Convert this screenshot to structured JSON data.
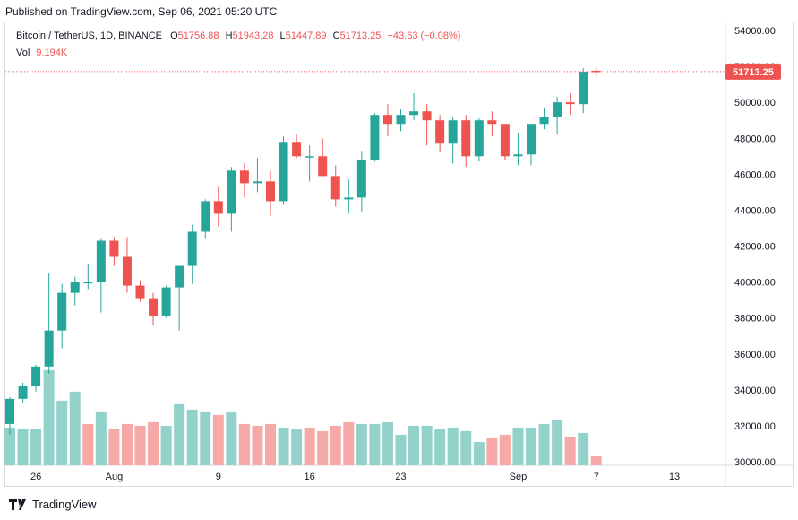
{
  "header": {
    "published": "Published on TradingView.com, Sep 06, 2021 05:20 UTC"
  },
  "legend": {
    "symbol": "Bitcoin / TetherUS, 1D, BINANCE",
    "o_label": "O",
    "o_value": "51756.88",
    "h_label": "H",
    "h_value": "51943.28",
    "l_label": "L",
    "l_value": "51447.89",
    "c_label": "C",
    "c_value": "51713.25",
    "change": "−43.63 (−0.08%)",
    "vol_label": "Vol",
    "vol_value": "9.194K"
  },
  "footer": {
    "brand": "TradingView"
  },
  "colors": {
    "up": "#26a69a",
    "down": "#ef5350",
    "up_vol": "#93d2cb",
    "down_vol": "#f7a9a7",
    "grid": "#e0e3eb"
  },
  "chart_data": {
    "type": "candlestick",
    "price_axis": {
      "min": 30000,
      "max": 54000,
      "step": 2000,
      "labels": [
        "54000.00",
        "52000.00",
        "50000.00",
        "48000.00",
        "46000.00",
        "44000.00",
        "42000.00",
        "40000.00",
        "38000.00",
        "36000.00",
        "34000.00",
        "32000.00",
        "30000.00"
      ]
    },
    "last_price_label": "51713.25",
    "last_price": 51713.25,
    "x_ticks": [
      {
        "label": "26",
        "index": 2
      },
      {
        "label": "Aug",
        "index": 8
      },
      {
        "label": "9",
        "index": 16
      },
      {
        "label": "16",
        "index": 23
      },
      {
        "label": "23",
        "index": 30
      },
      {
        "label": "Sep",
        "index": 39
      },
      {
        "label": "7",
        "index": 45
      },
      {
        "label": "13",
        "index": 51
      }
    ],
    "candles": [
      {
        "o": 32100,
        "h": 33600,
        "l": 31500,
        "c": 33500
      },
      {
        "o": 33500,
        "h": 34400,
        "l": 33300,
        "c": 34200
      },
      {
        "o": 34200,
        "h": 35400,
        "l": 33900,
        "c": 35300
      },
      {
        "o": 35300,
        "h": 40500,
        "l": 34900,
        "c": 37300
      },
      {
        "o": 37300,
        "h": 39900,
        "l": 36300,
        "c": 39400
      },
      {
        "o": 39400,
        "h": 40300,
        "l": 38700,
        "c": 40000
      },
      {
        "o": 40000,
        "h": 41000,
        "l": 39600,
        "c": 40000
      },
      {
        "o": 40000,
        "h": 42400,
        "l": 38300,
        "c": 42300
      },
      {
        "o": 42300,
        "h": 42500,
        "l": 40900,
        "c": 41400
      },
      {
        "o": 41400,
        "h": 42500,
        "l": 39400,
        "c": 39800
      },
      {
        "o": 39800,
        "h": 40100,
        "l": 38900,
        "c": 39100
      },
      {
        "o": 39100,
        "h": 39400,
        "l": 37600,
        "c": 38100
      },
      {
        "o": 38100,
        "h": 39800,
        "l": 38000,
        "c": 39700
      },
      {
        "o": 39700,
        "h": 40700,
        "l": 37300,
        "c": 40900
      },
      {
        "o": 40900,
        "h": 43200,
        "l": 39900,
        "c": 42800
      },
      {
        "o": 42800,
        "h": 44600,
        "l": 42400,
        "c": 44500
      },
      {
        "o": 44500,
        "h": 45300,
        "l": 43100,
        "c": 43800
      },
      {
        "o": 43800,
        "h": 46400,
        "l": 42800,
        "c": 46200
      },
      {
        "o": 46200,
        "h": 46600,
        "l": 44700,
        "c": 45500
      },
      {
        "o": 45500,
        "h": 46900,
        "l": 45000,
        "c": 45600
      },
      {
        "o": 45600,
        "h": 46200,
        "l": 43700,
        "c": 44500
      },
      {
        "o": 44500,
        "h": 48100,
        "l": 44300,
        "c": 47800
      },
      {
        "o": 47800,
        "h": 48200,
        "l": 46900,
        "c": 47000
      },
      {
        "o": 47000,
        "h": 47600,
        "l": 45600,
        "c": 47000
      },
      {
        "o": 47000,
        "h": 48000,
        "l": 45900,
        "c": 45900
      },
      {
        "o": 45900,
        "h": 46500,
        "l": 44200,
        "c": 44600
      },
      {
        "o": 44600,
        "h": 45700,
        "l": 43800,
        "c": 44700
      },
      {
        "o": 44700,
        "h": 47300,
        "l": 43900,
        "c": 46800
      },
      {
        "o": 46800,
        "h": 49400,
        "l": 46700,
        "c": 49300
      },
      {
        "o": 49300,
        "h": 49900,
        "l": 48100,
        "c": 48800
      },
      {
        "o": 48800,
        "h": 49600,
        "l": 48400,
        "c": 49300
      },
      {
        "o": 49300,
        "h": 50500,
        "l": 49000,
        "c": 49500
      },
      {
        "o": 49500,
        "h": 49900,
        "l": 47600,
        "c": 49000
      },
      {
        "o": 49000,
        "h": 49300,
        "l": 47200,
        "c": 47700
      },
      {
        "o": 47700,
        "h": 49200,
        "l": 46600,
        "c": 49000
      },
      {
        "o": 49000,
        "h": 49300,
        "l": 46400,
        "c": 47000
      },
      {
        "o": 47000,
        "h": 49100,
        "l": 46700,
        "c": 49000
      },
      {
        "o": 49000,
        "h": 49500,
        "l": 48100,
        "c": 48800
      },
      {
        "o": 48800,
        "h": 48800,
        "l": 46800,
        "c": 47000
      },
      {
        "o": 47000,
        "h": 48300,
        "l": 46500,
        "c": 47100
      },
      {
        "o": 47100,
        "h": 48700,
        "l": 46500,
        "c": 48800
      },
      {
        "o": 48800,
        "h": 49700,
        "l": 48500,
        "c": 49200
      },
      {
        "o": 49200,
        "h": 50300,
        "l": 48200,
        "c": 50000
      },
      {
        "o": 50000,
        "h": 50500,
        "l": 49300,
        "c": 49900
      },
      {
        "o": 49900,
        "h": 51900,
        "l": 49400,
        "c": 51700
      },
      {
        "o": 51757,
        "h": 51943,
        "l": 51448,
        "c": 51713
      }
    ],
    "volume": [
      {
        "v": 31.9,
        "up": true
      },
      {
        "v": 31.8,
        "up": true
      },
      {
        "v": 31.8,
        "up": true
      },
      {
        "v": 35.1,
        "up": true
      },
      {
        "v": 33.4,
        "up": true
      },
      {
        "v": 33.9,
        "up": true
      },
      {
        "v": 32.1,
        "up": false
      },
      {
        "v": 32.8,
        "up": true
      },
      {
        "v": 31.8,
        "up": false
      },
      {
        "v": 32.1,
        "up": false
      },
      {
        "v": 32.0,
        "up": false
      },
      {
        "v": 32.2,
        "up": false
      },
      {
        "v": 32.0,
        "up": true
      },
      {
        "v": 33.2,
        "up": true
      },
      {
        "v": 32.9,
        "up": true
      },
      {
        "v": 32.8,
        "up": true
      },
      {
        "v": 32.6,
        "up": false
      },
      {
        "v": 32.8,
        "up": true
      },
      {
        "v": 32.1,
        "up": false
      },
      {
        "v": 32.0,
        "up": false
      },
      {
        "v": 32.1,
        "up": false
      },
      {
        "v": 31.9,
        "up": true
      },
      {
        "v": 31.8,
        "up": true
      },
      {
        "v": 31.9,
        "up": false
      },
      {
        "v": 31.7,
        "up": false
      },
      {
        "v": 32.0,
        "up": false
      },
      {
        "v": 32.2,
        "up": false
      },
      {
        "v": 32.1,
        "up": true
      },
      {
        "v": 32.1,
        "up": true
      },
      {
        "v": 32.2,
        "up": true
      },
      {
        "v": 31.5,
        "up": true
      },
      {
        "v": 32.0,
        "up": true
      },
      {
        "v": 32.0,
        "up": true
      },
      {
        "v": 31.8,
        "up": true
      },
      {
        "v": 31.9,
        "up": true
      },
      {
        "v": 31.7,
        "up": true
      },
      {
        "v": 31.1,
        "up": true
      },
      {
        "v": 31.3,
        "up": false
      },
      {
        "v": 31.5,
        "up": false
      },
      {
        "v": 31.9,
        "up": true
      },
      {
        "v": 31.9,
        "up": true
      },
      {
        "v": 32.1,
        "up": true
      },
      {
        "v": 32.3,
        "up": true
      },
      {
        "v": 31.4,
        "up": false
      },
      {
        "v": 31.6,
        "up": true
      },
      {
        "v": 30.3,
        "up": false
      }
    ]
  }
}
